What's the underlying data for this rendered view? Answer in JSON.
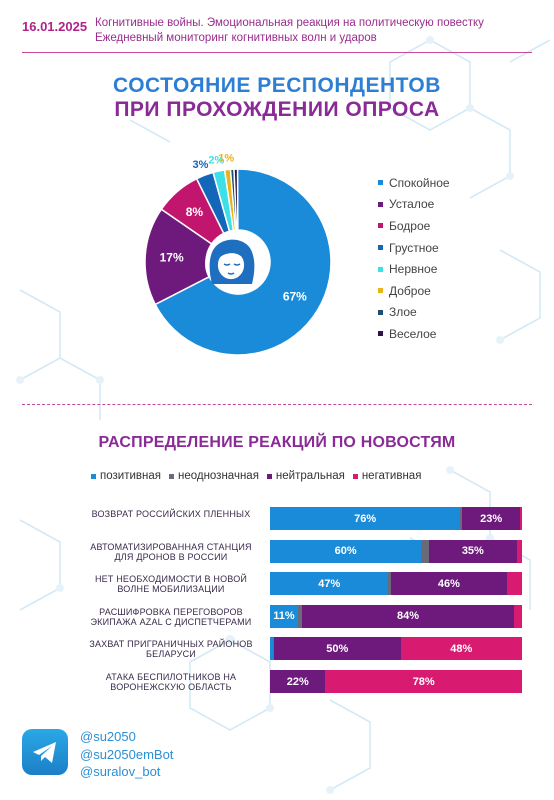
{
  "header": {
    "date": "16.01.2025",
    "line1": "Когнитивные войны. Эмоциональная реакция на политическую повестку",
    "line2": "Ежедневный мониторинг когнитивных волн и ударов"
  },
  "colors": {
    "calm": "#1a8bd9",
    "tired": "#6e1a7d",
    "cheerful": "#c2166e",
    "sad": "#1466b8",
    "nervous": "#3ee0e8",
    "kind": "#e8b41a",
    "angry": "#1e4e70",
    "merry": "#2e1446",
    "positive": "#1a8bd9",
    "ambiguous": "#6a6a7a",
    "neutral": "#6e1a7d",
    "negative": "#d81b70",
    "title_blue": "#2d7fd3",
    "title_purple": "#8a2a96"
  },
  "chart_data": [
    {
      "type": "pie",
      "title": "СОСТОЯНИЕ РЕСПОНДЕНТОВ ПРИ ПРОХОЖДЕНИИ ОПРОСА",
      "title_line1": "СОСТОЯНИЕ РЕСПОНДЕНТОВ",
      "title_line2": "ПРИ ПРОХОЖДЕНИИ ОПРОСА",
      "legend_position": "right",
      "slices": [
        {
          "name": "Спокойное",
          "value": 67,
          "label": "67%",
          "color_key": "calm"
        },
        {
          "name": "Усталое",
          "value": 17,
          "label": "17%",
          "color_key": "tired"
        },
        {
          "name": "Бодрое",
          "value": 8,
          "label": "8%",
          "color_key": "cheerful"
        },
        {
          "name": "Грустное",
          "value": 3,
          "label": "3%",
          "color_key": "sad"
        },
        {
          "name": "Нервное",
          "value": 2,
          "label": "2%",
          "color_key": "nervous"
        },
        {
          "name": "Доброе",
          "value": 1,
          "label": "1%",
          "color_key": "kind"
        },
        {
          "name": "Злое",
          "value": 0.6,
          "label": "",
          "color_key": "angry"
        },
        {
          "name": "Веселое",
          "value": 0.6,
          "label": "",
          "color_key": "merry"
        }
      ]
    },
    {
      "type": "bar",
      "orientation": "horizontal",
      "stacked": true,
      "title": "РАСПРЕДЕЛЕНИЕ РЕАКЦИЙ ПО НОВОСТЯМ",
      "legend_position": "top",
      "series_names": [
        "позитивная",
        "неоднозначная",
        "нейтральная",
        "негативная"
      ],
      "categories": [
        {
          "label": "ВОЗВРАТ РОССИЙСКИХ ПЛЕННЫХ",
          "values": [
            76,
            0.8,
            23,
            0.8
          ],
          "labels": [
            "76%",
            "",
            "23%",
            ""
          ]
        },
        {
          "label": "АВТОМАТИЗИРОВАННАЯ СТАНЦИЯ ДЛЯ ДРОНОВ В РОССИИ",
          "values": [
            60,
            3,
            35,
            2
          ],
          "labels": [
            "60%",
            "",
            "35%",
            ""
          ]
        },
        {
          "label": "НЕТ НЕОБХОДИМОСТИ В НОВОЙ ВОЛНЕ МОБИЛИЗАЦИИ",
          "values": [
            47,
            1,
            46,
            6
          ],
          "labels": [
            "47%",
            "",
            "46%",
            ""
          ]
        },
        {
          "label": "РАСШИФРОВКА ПЕРЕГОВОРОВ ЭКИПАЖА AZAL С ДИСПЕТЧЕРАМИ",
          "values": [
            11,
            1.5,
            84,
            3
          ],
          "labels": [
            "11%",
            "",
            "84%",
            ""
          ]
        },
        {
          "label": "ЗАХВАТ ПРИГРАНИЧНЫХ РАЙОНОВ БЕЛАРУСИ",
          "values": [
            1,
            0.6,
            50,
            48
          ],
          "labels": [
            "",
            "",
            "50%",
            "48%"
          ]
        },
        {
          "label": "АТАКА БЕСПИЛОТНИКОВ НА ВОРОНЕЖСКУЮ ОБЛАСТЬ",
          "values": [
            0,
            0,
            22,
            78
          ],
          "labels": [
            "",
            "",
            "22%",
            "78%"
          ]
        }
      ]
    }
  ],
  "footer": {
    "handle1": "@su2050",
    "handle2": "@su2050emBot",
    "handle3": "@suralov_bot",
    "icon": "telegram-icon"
  }
}
